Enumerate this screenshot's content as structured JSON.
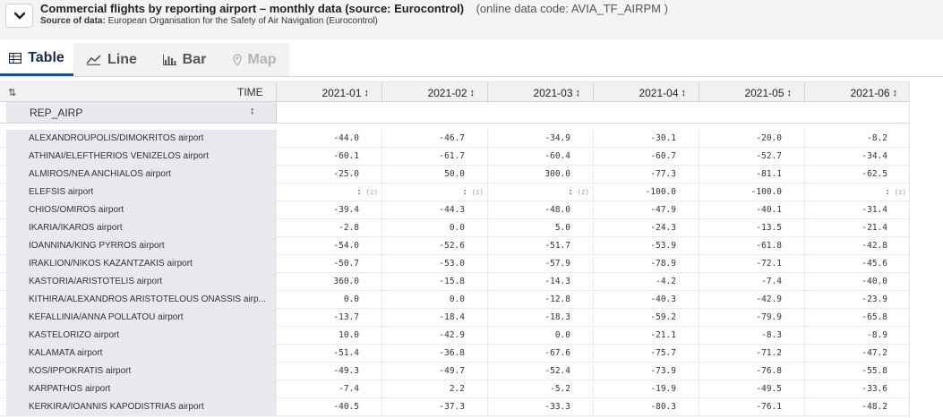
{
  "header": {
    "title": "Commercial flights by reporting airport – monthly data (source: Eurocontrol)",
    "code": "(online data code: AVIA_TF_AIRPM )",
    "source_label": "Source of data:",
    "source_value": "European Organisation for the Safety of Air Navigation (Eurocontrol)"
  },
  "tabs": [
    {
      "label": "Table",
      "icon": "table-icon",
      "state": "active"
    },
    {
      "label": "Line",
      "icon": "line-chart-icon",
      "state": "normal"
    },
    {
      "label": "Bar",
      "icon": "bar-chart-icon",
      "state": "normal"
    },
    {
      "label": "Map",
      "icon": "map-pin-icon",
      "state": "disabled"
    }
  ],
  "table": {
    "sort_toggle": "⇅",
    "time_label": "TIME",
    "dimension_label": "REP_AIRP",
    "columns": [
      "2021-01",
      "2021-02",
      "2021-03",
      "2021-04",
      "2021-05",
      "2021-06"
    ],
    "rows": [
      {
        "label": "ALEXANDROUPOLIS/DIMOKRITOS airport",
        "values": [
          "-44.0",
          "-46.7",
          "-34.9",
          "-30.1",
          "-20.0",
          "-8.2"
        ]
      },
      {
        "label": "ATHINAI/ELEFTHERIOS VENIZELOS airport",
        "values": [
          "-60.1",
          "-61.7",
          "-60.4",
          "-60.7",
          "-52.7",
          "-34.4"
        ]
      },
      {
        "label": "ALMIROS/NEA ANCHIALOS airport",
        "values": [
          "-25.0",
          "50.0",
          "300.0",
          "-77.3",
          "-81.1",
          "-62.5"
        ]
      },
      {
        "label": "ELEFSIS airport",
        "values": [
          ":",
          ":",
          ":",
          "-100.0",
          "-100.0",
          ":"
        ]
      },
      {
        "label": "CHIOS/OMIROS airport",
        "values": [
          "-39.4",
          "-44.3",
          "-48.0",
          "-47.9",
          "-40.1",
          "-31.4"
        ]
      },
      {
        "label": "IKARIA/IKAROS airport",
        "values": [
          "-2.8",
          "0.0",
          "5.0",
          "-24.3",
          "-13.5",
          "-21.4"
        ]
      },
      {
        "label": "IOANNINA/KING PYRROS airport",
        "values": [
          "-54.0",
          "-52.6",
          "-51.7",
          "-53.9",
          "-61.8",
          "-42.8"
        ]
      },
      {
        "label": "IRAKLION/NIKOS KAZANTZAKIS airport",
        "values": [
          "-50.7",
          "-53.0",
          "-57.9",
          "-78.9",
          "-72.1",
          "-45.6"
        ]
      },
      {
        "label": "KASTORIA/ARISTOTELIS airport",
        "values": [
          "360.0",
          "-15.8",
          "-14.3",
          "-4.2",
          "-7.4",
          "-40.0"
        ]
      },
      {
        "label": "KITHIRA/ALEXANDROS ARISTOTELOUS ONASSIS airp...",
        "values": [
          "0.0",
          "0.0",
          "-12.8",
          "-40.3",
          "-42.9",
          "-23.9"
        ]
      },
      {
        "label": "KEFALLINIA/ANNA POLLATOU airport",
        "values": [
          "-13.7",
          "-18.4",
          "-18.3",
          "-59.2",
          "-79.9",
          "-65.8"
        ]
      },
      {
        "label": "KASTELORIZO airport",
        "values": [
          "10.0",
          "-42.9",
          "0.0",
          "-21.1",
          "-8.3",
          "-8.9"
        ]
      },
      {
        "label": "KALAMATA airport",
        "values": [
          "-51.4",
          "-36.8",
          "-67.6",
          "-75.7",
          "-71.2",
          "-47.2"
        ]
      },
      {
        "label": "KOS/IPPOKRATIS airport",
        "values": [
          "-49.3",
          "-49.7",
          "-52.4",
          "-73.9",
          "-76.8",
          "-55.8"
        ]
      },
      {
        "label": "KARPATHOS airport",
        "values": [
          "-7.4",
          "2.2",
          "-5.2",
          "-19.9",
          "-49.5",
          "-33.6"
        ]
      },
      {
        "label": "KERKIRA/IOANNIS KAPODISTRIAS airport",
        "values": [
          "-40.5",
          "-37.3",
          "-33.3",
          "-80.3",
          "-76.1",
          "-48.2"
        ]
      }
    ],
    "flags": {
      "3": {
        "0": "(z)",
        "1": "(z)",
        "2": "(z)",
        "5": "(z)"
      }
    }
  }
}
